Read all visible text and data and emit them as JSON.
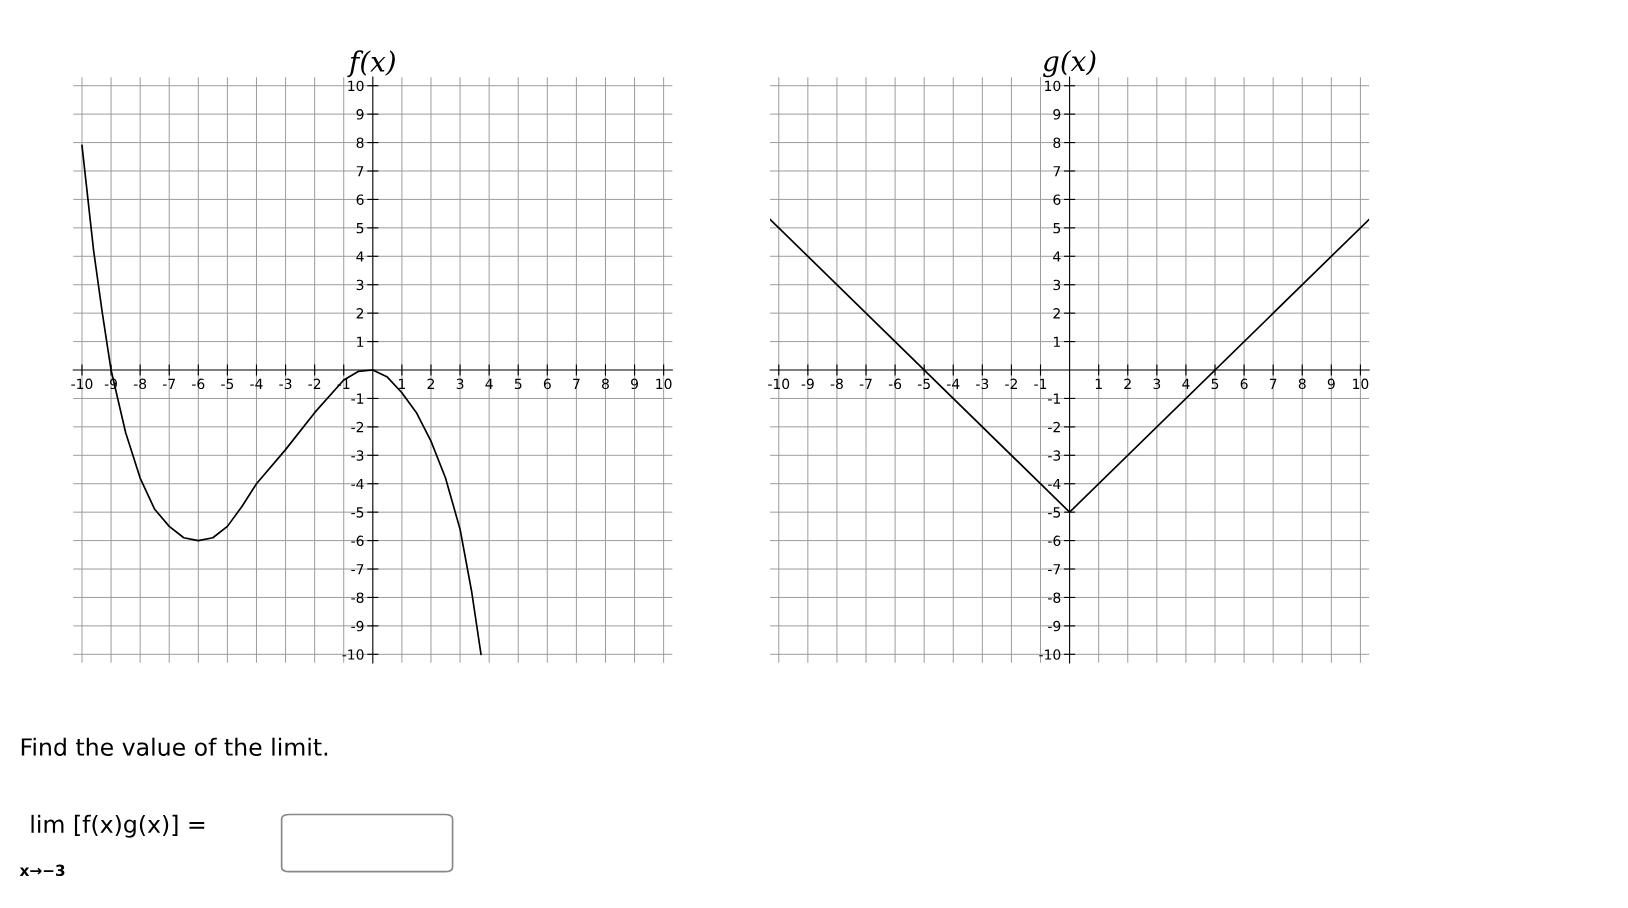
{
  "chart_data": [
    {
      "type": "line",
      "title": "f(x)",
      "xlim": [
        -10.3,
        10.3
      ],
      "ylim": [
        -10.3,
        10.3
      ],
      "xticks": [
        -10,
        -9,
        -8,
        -7,
        -6,
        -5,
        -4,
        -3,
        -2,
        -1,
        1,
        2,
        3,
        4,
        5,
        6,
        7,
        8,
        9,
        10
      ],
      "yticks": [
        -10,
        -9,
        -8,
        -7,
        -6,
        -5,
        -4,
        -3,
        -2,
        -1,
        1,
        2,
        3,
        4,
        5,
        6,
        7,
        8,
        9,
        10
      ],
      "grid": true,
      "marker": "none",
      "line_style": "solid",
      "series": [
        {
          "color": "#000000",
          "x": [
            -10,
            -9.6,
            -9.3,
            -9,
            -8.5,
            -8,
            -7.5,
            -7,
            -6.5,
            -6,
            -5.5,
            -5,
            -4.5,
            -4,
            -3,
            -2,
            -1,
            -0.5,
            0,
            0.5,
            1,
            1.5,
            2,
            2.5,
            3,
            3.4,
            3.72
          ],
          "values": [
            7.9,
            4.2,
            2,
            0,
            -2.2,
            -3.8,
            -4.9,
            -5.5,
            -5.9,
            -6,
            -5.9,
            -5.5,
            -4.8,
            -4,
            -2.8,
            -1.5,
            -0.35,
            -0.05,
            0,
            -0.25,
            -0.8,
            -1.5,
            -2.5,
            -3.8,
            -5.6,
            -7.8,
            -10
          ]
        }
      ],
      "annotations": [
        "Find the value of the limit.",
        "lim [f(x)g(x)] =",
        "x→−3"
      ]
    },
    {
      "type": "line",
      "title": "g(x)",
      "xlim": [
        -10.3,
        10.3
      ],
      "ylim": [
        -10.3,
        10.3
      ],
      "xticks": [
        -10,
        -9,
        -8,
        -7,
        -6,
        -5,
        -4,
        -3,
        -2,
        -1,
        1,
        2,
        3,
        4,
        5,
        6,
        7,
        8,
        9,
        10
      ],
      "yticks": [
        -10,
        -9,
        -8,
        -7,
        -6,
        -5,
        -4,
        -3,
        -2,
        -1,
        1,
        2,
        3,
        4,
        5,
        6,
        7,
        8,
        9,
        10
      ],
      "grid": true,
      "marker": "none",
      "line_style": "solid",
      "series": [
        {
          "color": "#000000",
          "x": [
            -10.3,
            0,
            10.3
          ],
          "values": [
            5.3,
            -5,
            5.3
          ]
        }
      ]
    }
  ]
}
